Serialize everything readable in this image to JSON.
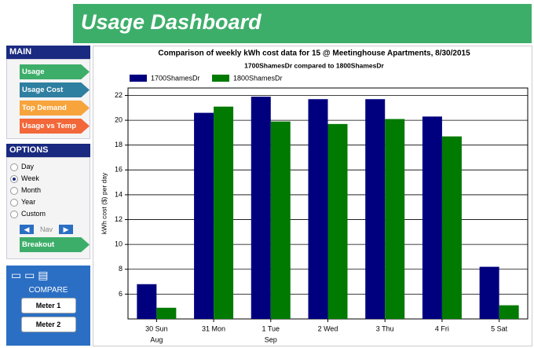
{
  "header": {
    "title": "Usage Dashboard"
  },
  "sidebar": {
    "main_title": "MAIN",
    "menu": [
      "Usage",
      "Usage Cost",
      "Top Demand",
      "Usage vs Temp"
    ],
    "options_title": "OPTIONS",
    "options": [
      {
        "label": "Day",
        "checked": false
      },
      {
        "label": "Week",
        "checked": true
      },
      {
        "label": "Month",
        "checked": false
      },
      {
        "label": "Year",
        "checked": false
      },
      {
        "label": "Custom",
        "checked": false
      }
    ],
    "nav": "Nav",
    "breakout": "Breakout",
    "compare": "COMPARE",
    "meters": [
      "Meter 1",
      "Meter 2"
    ]
  },
  "chart_data": {
    "type": "bar",
    "title": "Comparison of weekly kWh cost data for 15 @ Meetinghouse Apartments, 8/30/2015",
    "subtitle": "1700ShamesDr compared to 1800ShamesDr",
    "y_label": "kWh cost ($) per day",
    "categories": [
      "30 Sun",
      "31 Mon",
      "1 Tue",
      "2 Wed",
      "3 Thu",
      "4 Fri",
      "5 Sat"
    ],
    "month_labels": [
      "Aug",
      null,
      "Sep",
      null,
      null,
      null,
      null
    ],
    "series": [
      {
        "name": "1700ShamesDr",
        "color": "#00007f",
        "values": [
          6.8,
          20.6,
          21.9,
          21.7,
          21.7,
          20.3,
          8.2
        ]
      },
      {
        "name": "1800ShamesDr",
        "color": "#007a00",
        "values": [
          4.9,
          21.1,
          19.9,
          19.7,
          20.1,
          18.7,
          5.1
        ]
      }
    ],
    "ylim": [
      4,
      22.6
    ],
    "yticks": [
      6,
      8,
      10,
      12,
      14,
      16,
      18,
      20,
      22
    ],
    "grid": true
  }
}
